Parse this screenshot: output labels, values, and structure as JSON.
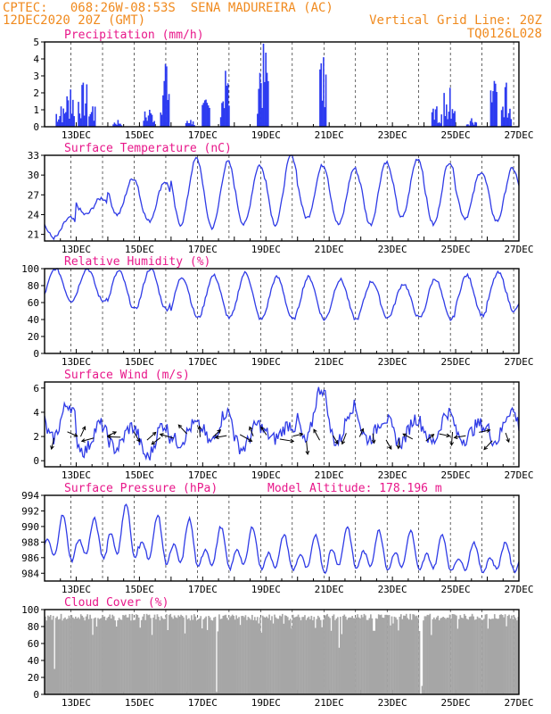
{
  "header": {
    "line1_left": "CPTEC:   068:26W-08:53S  SENA MADUREIRA (AC)",
    "line2_left": "12DEC2020 20Z (GMT)",
    "line2_right": "Vertical Grid Line: 20Z",
    "line3_right": "TQ0126L028"
  },
  "colors": {
    "header": "#f08a1e",
    "title": "#e8178a",
    "series": "#2f3be6",
    "bars": "#2d3bf0",
    "cloud": "#a6a6a6",
    "grid": "#000000"
  },
  "chart_data": [
    {
      "type": "bar",
      "title": "Precipitation (mm/h)",
      "x_tick_labels": [
        "13DEC",
        "15DEC",
        "17DEC",
        "19DEC",
        "21DEC",
        "23DEC",
        "25DEC",
        "27DEC"
      ],
      "y_tick_labels": [
        "0",
        "1",
        "2",
        "3",
        "4",
        "5"
      ],
      "ylim": [
        0,
        5
      ],
      "grid": "vertical dashed lines at 20Z",
      "bursts": [
        {
          "day": 12.5,
          "peak": 1.2
        },
        {
          "day": 12.8,
          "peak": 2.2
        },
        {
          "day": 13.2,
          "peak": 2.6
        },
        {
          "day": 13.5,
          "peak": 1.2
        },
        {
          "day": 14.3,
          "peak": 0.4
        },
        {
          "day": 15.3,
          "peak": 1.0
        },
        {
          "day": 15.8,
          "peak": 3.7
        },
        {
          "day": 16.6,
          "peak": 0.4
        },
        {
          "day": 17.1,
          "peak": 1.6
        },
        {
          "day": 17.7,
          "peak": 3.3
        },
        {
          "day": 18.9,
          "peak": 4.9
        },
        {
          "day": 20.8,
          "peak": 4.1
        },
        {
          "day": 24.4,
          "peak": 1.2
        },
        {
          "day": 24.8,
          "peak": 2.3
        },
        {
          "day": 25.5,
          "peak": 0.5
        },
        {
          "day": 26.2,
          "peak": 2.7
        },
        {
          "day": 26.6,
          "peak": 2.6
        }
      ]
    },
    {
      "type": "line",
      "title": "Surface Temperature (nC)",
      "x_tick_labels": [
        "13DEC",
        "15DEC",
        "17DEC",
        "19DEC",
        "21DEC",
        "23DEC",
        "25DEC",
        "27DEC"
      ],
      "y_tick_labels": [
        "21",
        "24",
        "27",
        "30",
        "33"
      ],
      "ylim": [
        20,
        33
      ],
      "daily_max": [
        23.5,
        26.5,
        29.5,
        29.0,
        32.5,
        32.0,
        31.5,
        33.0,
        31.5,
        31.0,
        32.0,
        32.5,
        32.0,
        30.5,
        31.0
      ],
      "daily_min": [
        20.5,
        24.0,
        24.0,
        23.0,
        22.5,
        22.0,
        22.5,
        22.5,
        23.5,
        22.5,
        22.5,
        23.5,
        22.5,
        23.5,
        23.0
      ]
    },
    {
      "type": "line",
      "title": "Relative Humidity (%)",
      "x_tick_labels": [
        "13DEC",
        "15DEC",
        "17DEC",
        "19DEC",
        "21DEC",
        "23DEC",
        "25DEC",
        "27DEC"
      ],
      "y_tick_labels": [
        "0",
        "20",
        "40",
        "60",
        "80",
        "100"
      ],
      "ylim": [
        0,
        100
      ],
      "daily_max": [
        100,
        100,
        97,
        100,
        90,
        92,
        95,
        90,
        90,
        87,
        85,
        82,
        88,
        92,
        95
      ],
      "daily_min": [
        62,
        62,
        52,
        52,
        42,
        42,
        40,
        40,
        40,
        40,
        42,
        42,
        40,
        45,
        50
      ]
    },
    {
      "type": "line",
      "title": "Surface Wind (m/s)",
      "x_tick_labels": [
        "13DEC",
        "15DEC",
        "17DEC",
        "19DEC",
        "21DEC",
        "23DEC",
        "25DEC",
        "27DEC"
      ],
      "y_tick_labels": [
        "0",
        "2",
        "4",
        "6"
      ],
      "ylim": [
        -0.5,
        6.5
      ],
      "daily_max": [
        4.7,
        3.0,
        2.8,
        3.0,
        3.0,
        4.0,
        3.0,
        3.0,
        6.0,
        4.5,
        3.5,
        3.5,
        4.0,
        3.0,
        4.2
      ],
      "daily_min": [
        1.8,
        0.8,
        1.0,
        0.3,
        1.5,
        1.5,
        1.0,
        1.8,
        1.5,
        1.5,
        1.8,
        1.5,
        1.5,
        1.8,
        1.6
      ]
    },
    {
      "type": "line",
      "title": "Surface Pressure (hPa)",
      "annotation": "Model Altitude: 178.196 m",
      "x_tick_labels": [
        "13DEC",
        "15DEC",
        "17DEC",
        "19DEC",
        "21DEC",
        "23DEC",
        "25DEC",
        "27DEC"
      ],
      "y_tick_labels": [
        "984",
        "986",
        "988",
        "990",
        "992",
        "994"
      ],
      "ylim": [
        983,
        994
      ],
      "daily_max": [
        991.5,
        991.0,
        993.0,
        991.5,
        991.0,
        990.0,
        990.0,
        989.0,
        989.0,
        990.0,
        989.5,
        989.5,
        989.0,
        988.0,
        988.0
      ],
      "daily_min": [
        984.5,
        985.0,
        984.5,
        984.0,
        983.5,
        983.5,
        983.5,
        983.5,
        983.2,
        983.5,
        983.5,
        983.3,
        983.3,
        983.4,
        983.5
      ]
    },
    {
      "type": "area",
      "title": "Cloud Cover (%)",
      "x_tick_labels": [
        "13DEC",
        "15DEC",
        "17DEC",
        "19DEC",
        "21DEC",
        "23DEC",
        "25DEC",
        "27DEC"
      ],
      "y_tick_labels": [
        "0",
        "20",
        "40",
        "60",
        "80",
        "100"
      ],
      "ylim": [
        0,
        100
      ],
      "typical_level": 95,
      "dips": [
        {
          "day": 12.3,
          "level": 30
        },
        {
          "day": 17.4,
          "level": 3
        },
        {
          "day": 21.3,
          "level": 55
        },
        {
          "day": 22.4,
          "level": 75
        },
        {
          "day": 23.9,
          "level": 10
        },
        {
          "day": 24.2,
          "level": 70
        }
      ]
    }
  ]
}
